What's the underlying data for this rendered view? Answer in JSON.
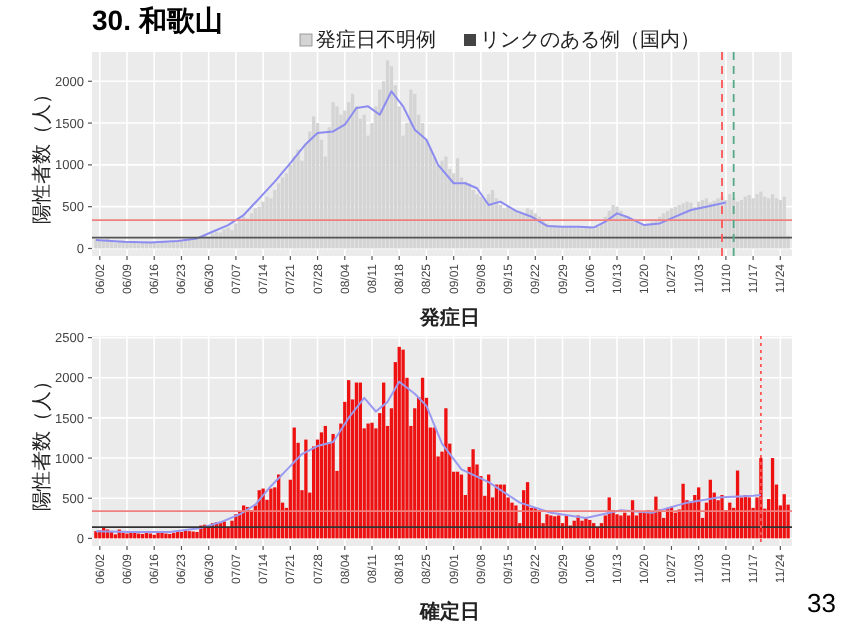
{
  "chart_data": [
    {
      "type": "bar",
      "title": "30. 和歌山",
      "xlabel": "発症日",
      "ylabel": "陽性者数（人）",
      "legend": "top",
      "grid": true,
      "annotations": [
        "リンクのある例（国内）"
      ],
      "x": [
        "--06-01",
        "--06-02",
        "--06-03",
        "--06-04",
        "--06-05",
        "--06-06",
        "--06-07",
        "--06-08",
        "--06-09",
        "--06-10",
        "--06-11",
        "--06-12",
        "--06-13",
        "--06-14",
        "--06-15",
        "--06-16",
        "--06-17",
        "--06-18",
        "--06-19",
        "--06-20",
        "--06-21",
        "--06-22",
        "--06-23",
        "--06-24",
        "--06-25",
        "--06-26",
        "--06-27",
        "--06-28",
        "--06-29",
        "--06-30",
        "--07-01",
        "--07-02",
        "--07-03",
        "--07-04",
        "--07-05",
        "--07-06",
        "--07-07",
        "--07-08",
        "--07-09",
        "--07-10",
        "--07-11",
        "--07-12",
        "--07-13",
        "--07-14",
        "--07-15",
        "--07-16",
        "--07-17",
        "--07-18",
        "--07-19",
        "--07-20",
        "--07-21",
        "--07-22",
        "--07-23",
        "--07-24",
        "--07-25",
        "--07-26",
        "--07-27",
        "--07-28",
        "--07-29",
        "--07-30",
        "--07-31",
        "--08-01",
        "--08-02",
        "--08-03",
        "--08-04",
        "--08-05",
        "--08-06",
        "--08-07",
        "--08-08",
        "--08-09",
        "--08-10",
        "--08-11",
        "--08-12",
        "--08-13",
        "--08-14",
        "--08-15",
        "--08-16",
        "--08-17",
        "--08-18",
        "--08-19",
        "--08-20",
        "--08-21",
        "--08-22",
        "--08-23",
        "--08-24",
        "--08-25",
        "--08-26",
        "--08-27",
        "--08-28",
        "--08-29",
        "--08-30",
        "--08-31",
        "--09-01",
        "--09-02",
        "--09-03",
        "--09-04",
        "--09-05",
        "--09-06",
        "--09-07",
        "--09-08",
        "--09-09",
        "--09-10",
        "--09-11",
        "--09-12",
        "--09-13",
        "--09-14",
        "--09-15",
        "--09-16",
        "--09-17",
        "--09-18",
        "--09-19",
        "--09-20",
        "--09-21",
        "--09-22",
        "--09-23",
        "--09-24",
        "--09-25",
        "--09-26",
        "--09-27",
        "--09-28",
        "--09-29",
        "--09-30",
        "--10-01",
        "--10-02",
        "--10-03",
        "--10-04",
        "--10-05",
        "--10-06",
        "--10-07",
        "--10-08",
        "--10-09",
        "--10-10",
        "--10-11",
        "--10-12",
        "--10-13",
        "--10-14",
        "--10-15",
        "--10-16",
        "--10-17",
        "--10-18",
        "--10-19",
        "--10-20",
        "--10-21",
        "--10-22",
        "--10-23",
        "--10-24",
        "--10-25",
        "--10-26",
        "--10-27",
        "--10-28",
        "--10-29",
        "--10-30",
        "--10-31",
        "--11-01",
        "--11-02",
        "--11-03",
        "--11-04",
        "--11-05",
        "--11-06",
        "--11-07",
        "--11-08",
        "--11-09",
        "--11-10",
        "--11-11",
        "--11-12",
        "--11-13",
        "--11-14",
        "--11-15",
        "--11-16",
        "--11-17",
        "--11-18",
        "--11-19",
        "--11-20",
        "--11-21",
        "--11-22",
        "--11-23",
        "--11-24",
        "--11-25",
        "--11-26"
      ],
      "xlim": [
        "--05-31",
        "--11-27"
      ],
      "xticks": [
        {
          "value": "--06-02",
          "label": "06/02"
        },
        {
          "value": "--06-09",
          "label": "06/09"
        },
        {
          "value": "--06-16",
          "label": "06/16"
        },
        {
          "value": "--06-23",
          "label": "06/23"
        },
        {
          "value": "--06-30",
          "label": "06/30"
        },
        {
          "value": "--07-07",
          "label": "07/07"
        },
        {
          "value": "--07-14",
          "label": "07/14"
        },
        {
          "value": "--07-21",
          "label": "07/21"
        },
        {
          "value": "--07-28",
          "label": "07/28"
        },
        {
          "value": "--08-04",
          "label": "08/04"
        },
        {
          "value": "--08-11",
          "label": "08/11"
        },
        {
          "value": "--08-18",
          "label": "08/18"
        },
        {
          "value": "--08-25",
          "label": "08/25"
        },
        {
          "value": "--09-01",
          "label": "09/01"
        },
        {
          "value": "--09-08",
          "label": "09/08"
        },
        {
          "value": "--09-15",
          "label": "09/15"
        },
        {
          "value": "--09-22",
          "label": "09/22"
        },
        {
          "value": "--09-29",
          "label": "09/29"
        },
        {
          "value": "--10-06",
          "label": "10/06"
        },
        {
          "value": "--10-13",
          "label": "10/13"
        },
        {
          "value": "--10-20",
          "label": "10/20"
        },
        {
          "value": "--10-27",
          "label": "10/27"
        },
        {
          "value": "--11-03",
          "label": "11/03"
        },
        {
          "value": "--11-10",
          "label": "11/10"
        },
        {
          "value": "--11-17",
          "label": "11/17"
        },
        {
          "value": "--11-24",
          "label": "11/24"
        }
      ],
      "ylim": [
        -90,
        2350
      ],
      "yticks": [
        0,
        500,
        1000,
        1500,
        2000
      ],
      "series": [
        {
          "name": "発症日不明例",
          "color": "#d4d4d4",
          "values": [
            110,
            100,
            90,
            120,
            80,
            70,
            90,
            100,
            80,
            70,
            75,
            60,
            70,
            80,
            65,
            70,
            60,
            75,
            80,
            70,
            90,
            85,
            100,
            110,
            120,
            100,
            130,
            150,
            160,
            140,
            180,
            200,
            190,
            230,
            250,
            220,
            300,
            330,
            380,
            360,
            420,
            480,
            500,
            560,
            620,
            600,
            700,
            780,
            850,
            900,
            1000,
            1100,
            1180,
            1050,
            1250,
            1400,
            1580,
            1500,
            1300,
            1100,
            1450,
            1750,
            1700,
            1600,
            1650,
            1750,
            1850,
            1700,
            1550,
            1600,
            1350,
            1500,
            1700,
            1900,
            2000,
            2250,
            2180,
            1950,
            1700,
            1350,
            1500,
            1900,
            1850,
            1600,
            1500,
            1300,
            1200,
            1100,
            1000,
            1050,
            1100,
            950,
            900,
            1080,
            850,
            800,
            780,
            700,
            650,
            620,
            600,
            650,
            700,
            600,
            520,
            480,
            500,
            480,
            450,
            430,
            420,
            480,
            460,
            420,
            380,
            330,
            300,
            280,
            270,
            260,
            250,
            260,
            270,
            260,
            250,
            240,
            260,
            250,
            230,
            260,
            300,
            380,
            450,
            520,
            500,
            450,
            400,
            380,
            350,
            320,
            300,
            280,
            300,
            320,
            350,
            380,
            420,
            450,
            480,
            500,
            520,
            540,
            560,
            550,
            500,
            560,
            580,
            600,
            550,
            570,
            600,
            620,
            580,
            650,
            600,
            560,
            580,
            620,
            640,
            600,
            650,
            680,
            620,
            600,
            650,
            600,
            580,
            620,
            150
          ]
        },
        {
          "type": "line",
          "color": "#8c8cf0",
          "x": [
            "--06-01",
            "--06-08",
            "--06-15",
            "--06-22",
            "--06-27",
            "--07-01",
            "--07-05",
            "--07-09",
            "--07-13",
            "--07-17",
            "--07-21",
            "--07-25",
            "--07-28",
            "--08-01",
            "--08-04",
            "--08-07",
            "--08-10",
            "--08-13",
            "--08-16",
            "--08-19",
            "--08-22",
            "--08-25",
            "--08-28",
            "--09-01",
            "--09-04",
            "--09-07",
            "--09-10",
            "--09-13",
            "--09-17",
            "--09-21",
            "--09-25",
            "--09-29",
            "--10-03",
            "--10-07",
            "--10-10",
            "--10-13",
            "--10-16",
            "--10-20",
            "--10-24",
            "--10-28",
            "--11-01",
            "--11-05",
            "--11-10"
          ],
          "values": [
            100,
            80,
            70,
            90,
            120,
            200,
            280,
            400,
            600,
            800,
            1020,
            1250,
            1380,
            1400,
            1480,
            1680,
            1700,
            1600,
            1880,
            1700,
            1420,
            1300,
            1000,
            780,
            780,
            720,
            520,
            560,
            450,
            380,
            270,
            260,
            260,
            250,
            320,
            420,
            370,
            280,
            300,
            380,
            460,
            500,
            550
          ]
        }
      ],
      "ref_lines": [
        {
          "axis": "y",
          "value": 340,
          "color": "#f08080"
        },
        {
          "axis": "y",
          "value": 130,
          "color": "#555555"
        },
        {
          "axis": "x",
          "value": "--11-09",
          "color": "#ff5555",
          "line_style": "dashed"
        },
        {
          "axis": "x",
          "value": "--11-12",
          "color": "#55aa88",
          "line_style": "dashed"
        }
      ]
    },
    {
      "type": "bar",
      "xlabel": "確定日",
      "ylabel": "陽性者数（人）",
      "grid": true,
      "annotations": [
        "33"
      ],
      "x": [
        "--06-01",
        "--06-02",
        "--06-03",
        "--06-04",
        "--06-05",
        "--06-06",
        "--06-07",
        "--06-08",
        "--06-09",
        "--06-10",
        "--06-11",
        "--06-12",
        "--06-13",
        "--06-14",
        "--06-15",
        "--06-16",
        "--06-17",
        "--06-18",
        "--06-19",
        "--06-20",
        "--06-21",
        "--06-22",
        "--06-23",
        "--06-24",
        "--06-25",
        "--06-26",
        "--06-27",
        "--06-28",
        "--06-29",
        "--06-30",
        "--07-01",
        "--07-02",
        "--07-03",
        "--07-04",
        "--07-05",
        "--07-06",
        "--07-07",
        "--07-08",
        "--07-09",
        "--07-10",
        "--07-11",
        "--07-12",
        "--07-13",
        "--07-14",
        "--07-15",
        "--07-16",
        "--07-17",
        "--07-18",
        "--07-19",
        "--07-20",
        "--07-21",
        "--07-22",
        "--07-23",
        "--07-24",
        "--07-25",
        "--07-26",
        "--07-27",
        "--07-28",
        "--07-29",
        "--07-30",
        "--07-31",
        "--08-01",
        "--08-02",
        "--08-03",
        "--08-04",
        "--08-05",
        "--08-06",
        "--08-07",
        "--08-08",
        "--08-09",
        "--08-10",
        "--08-11",
        "--08-12",
        "--08-13",
        "--08-14",
        "--08-15",
        "--08-16",
        "--08-17",
        "--08-18",
        "--08-19",
        "--08-20",
        "--08-21",
        "--08-22",
        "--08-23",
        "--08-24",
        "--08-25",
        "--08-26",
        "--08-27",
        "--08-28",
        "--08-29",
        "--08-30",
        "--08-31",
        "--09-01",
        "--09-02",
        "--09-03",
        "--09-04",
        "--09-05",
        "--09-06",
        "--09-07",
        "--09-08",
        "--09-09",
        "--09-10",
        "--09-11",
        "--09-12",
        "--09-13",
        "--09-14",
        "--09-15",
        "--09-16",
        "--09-17",
        "--09-18",
        "--09-19",
        "--09-20",
        "--09-21",
        "--09-22",
        "--09-23",
        "--09-24",
        "--09-25",
        "--09-26",
        "--09-27",
        "--09-28",
        "--09-29",
        "--09-30",
        "--10-01",
        "--10-02",
        "--10-03",
        "--10-04",
        "--10-05",
        "--10-06",
        "--10-07",
        "--10-08",
        "--10-09",
        "--10-10",
        "--10-11",
        "--10-12",
        "--10-13",
        "--10-14",
        "--10-15",
        "--10-16",
        "--10-17",
        "--10-18",
        "--10-19",
        "--10-20",
        "--10-21",
        "--10-22",
        "--10-23",
        "--10-24",
        "--10-25",
        "--10-26",
        "--10-27",
        "--10-28",
        "--10-29",
        "--10-30",
        "--10-31",
        "--11-01",
        "--11-02",
        "--11-03",
        "--11-04",
        "--11-05",
        "--11-06",
        "--11-07",
        "--11-08",
        "--11-09",
        "--11-10",
        "--11-11",
        "--11-12",
        "--11-13",
        "--11-14",
        "--11-15",
        "--11-16",
        "--11-17",
        "--11-18",
        "--11-19",
        "--11-20",
        "--11-21",
        "--11-22",
        "--11-23",
        "--11-24",
        "--11-25",
        "--11-26"
      ],
      "xlim": [
        "--05-31",
        "--11-27"
      ],
      "xticks": [
        {
          "value": "--06-02",
          "label": "06/02"
        },
        {
          "value": "--06-09",
          "label": "06/09"
        },
        {
          "value": "--06-16",
          "label": "06/16"
        },
        {
          "value": "--06-23",
          "label": "06/23"
        },
        {
          "value": "--06-30",
          "label": "06/30"
        },
        {
          "value": "--07-07",
          "label": "07/07"
        },
        {
          "value": "--07-14",
          "label": "07/14"
        },
        {
          "value": "--07-21",
          "label": "07/21"
        },
        {
          "value": "--07-28",
          "label": "07/28"
        },
        {
          "value": "--08-04",
          "label": "08/04"
        },
        {
          "value": "--08-11",
          "label": "08/11"
        },
        {
          "value": "--08-18",
          "label": "08/18"
        },
        {
          "value": "--08-25",
          "label": "08/25"
        },
        {
          "value": "--09-01",
          "label": "09/01"
        },
        {
          "value": "--09-08",
          "label": "09/08"
        },
        {
          "value": "--09-15",
          "label": "09/15"
        },
        {
          "value": "--09-22",
          "label": "09/22"
        },
        {
          "value": "--09-29",
          "label": "09/29"
        },
        {
          "value": "--10-06",
          "label": "10/06"
        },
        {
          "value": "--10-13",
          "label": "10/13"
        },
        {
          "value": "--10-20",
          "label": "10/20"
        },
        {
          "value": "--10-27",
          "label": "10/27"
        },
        {
          "value": "--11-03",
          "label": "11/03"
        },
        {
          "value": "--11-10",
          "label": "11/10"
        },
        {
          "value": "--11-17",
          "label": "11/17"
        },
        {
          "value": "--11-24",
          "label": "11/24"
        }
      ],
      "ylim": [
        -95,
        2520
      ],
      "yticks": [
        0,
        500,
        1000,
        1500,
        2000,
        2500
      ],
      "series": [
        {
          "color": "#ee1111",
          "values": [
            90,
            100,
            130,
            110,
            80,
            50,
            110,
            70,
            60,
            70,
            80,
            60,
            55,
            70,
            60,
            45,
            70,
            80,
            60,
            55,
            70,
            90,
            80,
            100,
            90,
            85,
            80,
            160,
            170,
            150,
            190,
            200,
            190,
            210,
            130,
            220,
            300,
            330,
            410,
            390,
            350,
            410,
            600,
            620,
            480,
            620,
            635,
            795,
            445,
            380,
            730,
            1380,
            1190,
            600,
            1230,
            570,
            1145,
            1230,
            1320,
            1400,
            1190,
            1300,
            840,
            1430,
            1700,
            1970,
            1730,
            1940,
            1940,
            1370,
            1430,
            1440,
            1370,
            1560,
            1940,
            1400,
            1620,
            2195,
            2385,
            2350,
            2000,
            1400,
            1620,
            1760,
            2000,
            1750,
            1380,
            1380,
            1020,
            1080,
            1620,
            1180,
            830,
            830,
            795,
            540,
            890,
            1110,
            920,
            775,
            530,
            795,
            510,
            670,
            670,
            670,
            510,
            445,
            410,
            190,
            600,
            700,
            380,
            380,
            350,
            190,
            300,
            285,
            275,
            285,
            190,
            285,
            160,
            220,
            285,
            220,
            255,
            230,
            190,
            130,
            190,
            285,
            510,
            350,
            300,
            285,
            320,
            285,
            475,
            285,
            320,
            320,
            350,
            320,
            520,
            360,
            255,
            380,
            395,
            320,
            360,
            680,
            475,
            445,
            540,
            635,
            255,
            445,
            730,
            570,
            475,
            540,
            350,
            445,
            380,
            845,
            510,
            540,
            510,
            380,
            510,
            1000,
            370,
            490,
            1000,
            670,
            410,
            550,
            420
          ]
        },
        {
          "type": "line",
          "color": "#9a9af0",
          "x": [
            "--06-01",
            "--06-10",
            "--06-20",
            "--06-28",
            "--07-03",
            "--07-08",
            "--07-12",
            "--07-16",
            "--07-20",
            "--07-24",
            "--07-28",
            "--08-01",
            "--08-05",
            "--08-09",
            "--08-12",
            "--08-15",
            "--08-18",
            "--08-22",
            "--08-25",
            "--08-29",
            "--09-03",
            "--09-10",
            "--09-18",
            "--09-26",
            "--10-05",
            "--10-14",
            "--10-22",
            "--10-31",
            "--11-08",
            "--11-17",
            "--11-19"
          ],
          "values": [
            90,
            80,
            80,
            130,
            200,
            300,
            420,
            650,
            850,
            1050,
            1150,
            1200,
            1500,
            1750,
            1580,
            1700,
            1950,
            1800,
            1650,
            1180,
            860,
            700,
            445,
            320,
            255,
            350,
            320,
            445,
            510,
            530,
            540
          ]
        }
      ],
      "ref_lines": [
        {
          "axis": "y",
          "value": 340,
          "color": "#f08080"
        },
        {
          "axis": "y",
          "value": 140,
          "color": "#333333"
        },
        {
          "axis": "x",
          "value": "--11-19",
          "color": "#ff5555",
          "line_style": "dotted"
        }
      ]
    }
  ]
}
